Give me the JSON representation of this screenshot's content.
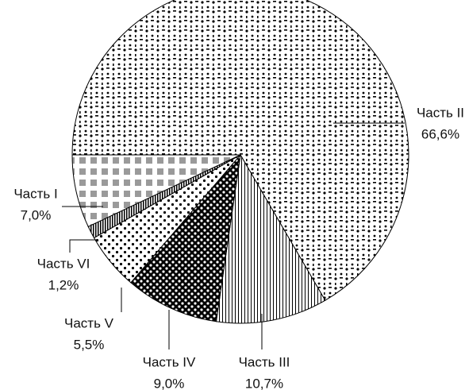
{
  "chart_data": {
    "type": "pie",
    "categories": [
      "Часть II",
      "Часть III",
      "Часть IV",
      "Часть V",
      "Часть VI",
      "Часть I"
    ],
    "values": [
      66.6,
      10.7,
      9.0,
      5.5,
      1.2,
      7.0
    ],
    "value_labels": [
      "66,6%",
      "10,7%",
      "9,0%",
      "5,5%",
      "1,2%",
      "7,0%"
    ]
  }
}
